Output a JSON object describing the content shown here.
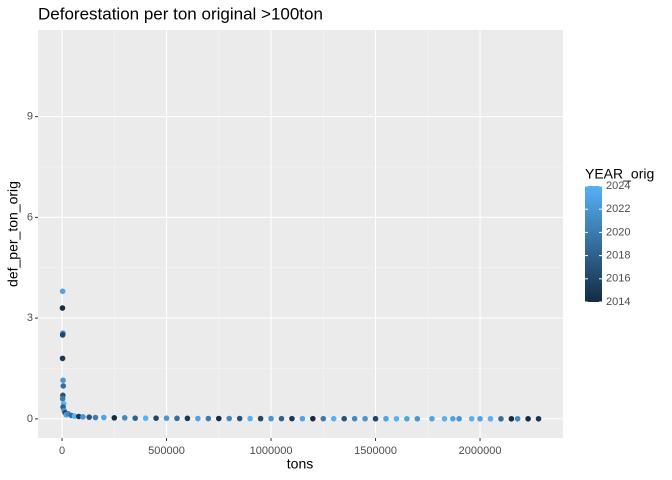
{
  "chart_data": {
    "type": "scatter",
    "title": "Deforestation per ton original >100ton",
    "x_label": "tons",
    "y_label": "def_per_ton_orig",
    "legend_title": "YEAR_orig",
    "color_low": "#132B43",
    "color_high": "#56B1F7",
    "colorlim": [
      2014,
      2024
    ],
    "colorticks": [
      2014,
      2016,
      2018,
      2020,
      2022,
      2024
    ],
    "xlim": [
      -115000,
      2397000
    ],
    "xticks": [
      0,
      500000,
      1000000,
      1500000,
      2000000
    ],
    "ylim": [
      -0.57,
      11.58
    ],
    "yticks": [
      0,
      3,
      6,
      9
    ],
    "grid": true,
    "minor_grid": true,
    "x": [
      3000,
      2000,
      4000,
      3000,
      2500,
      5000,
      6000,
      4000,
      3000,
      8000,
      5000,
      10000,
      15000,
      20000,
      30000,
      45000,
      60000,
      80000,
      100000,
      130000,
      160000,
      200000,
      250000,
      300000,
      350000,
      400000,
      450000,
      500000,
      550000,
      600000,
      650000,
      700000,
      750000,
      800000,
      850000,
      900000,
      950000,
      1000000,
      1050000,
      1100000,
      1150000,
      1200000,
      1250000,
      1300000,
      1350000,
      1400000,
      1450000,
      1500000,
      1550000,
      1600000,
      1650000,
      1700000,
      1770000,
      1830000,
      1870000,
      1900000,
      1960000,
      2000000,
      2050000,
      2100000,
      2150000,
      2180000,
      2230000,
      2280000
    ],
    "y": [
      3.8,
      3.3,
      2.55,
      2.5,
      1.8,
      1.15,
      0.98,
      0.7,
      0.6,
      0.45,
      0.35,
      0.25,
      0.18,
      0.12,
      0.15,
      0.1,
      0.08,
      0.07,
      0.06,
      0.05,
      0.04,
      0.04,
      0.03,
      0.03,
      0.02,
      0.02,
      0.02,
      0.02,
      0.015,
      0.015,
      0.01,
      0.01,
      0.01,
      0.01,
      0.01,
      0.008,
      0.008,
      0.008,
      0.007,
      0.007,
      0.006,
      0.006,
      0.006,
      0.005,
      0.005,
      0.005,
      0.004,
      0.004,
      0.004,
      0.003,
      0.003,
      0.003,
      0.003,
      0.003,
      0.003,
      0.003,
      0.003,
      0.002,
      0.002,
      0.002,
      0.002,
      0.002,
      0.002,
      0.002
    ],
    "year": [
      2023,
      2014,
      2021,
      2016,
      2015,
      2022,
      2019,
      2017,
      2020,
      2024,
      2018,
      2022,
      2016,
      2023,
      2021,
      2019,
      2024,
      2015,
      2022,
      2017,
      2020,
      2023,
      2014,
      2021,
      2018,
      2024,
      2016,
      2022,
      2019,
      2015,
      2023,
      2020,
      2014,
      2021,
      2017,
      2024,
      2016,
      2022,
      2018,
      2015,
      2023,
      2014,
      2020,
      2024,
      2017,
      2021,
      2022,
      2016,
      2023,
      2024,
      2023,
      2022,
      2023,
      2024,
      2023,
      2022,
      2024,
      2023,
      2024,
      2019,
      2014,
      2021,
      2014,
      2015
    ]
  }
}
